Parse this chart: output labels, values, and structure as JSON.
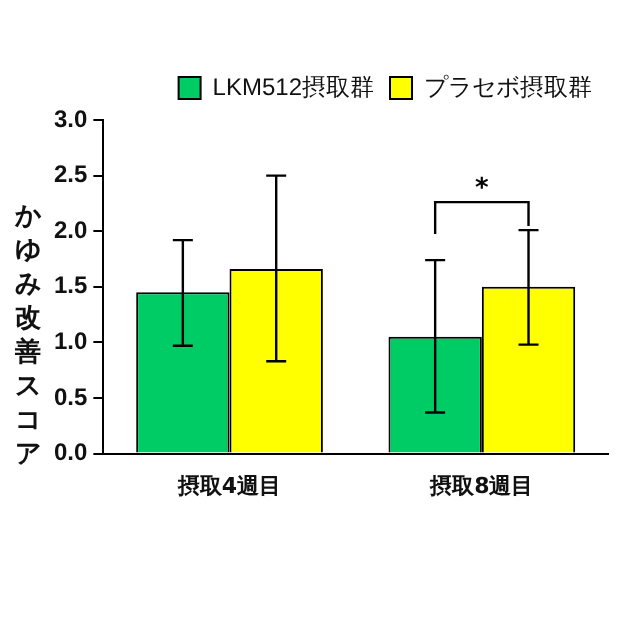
{
  "chart_data": {
    "type": "bar",
    "ylabel": "かゆみ改善スコア",
    "categories": [
      "摂取4週目",
      "摂取8週目"
    ],
    "series": [
      {
        "name": "LKM512摂取群",
        "color": "#00cc66",
        "values": [
          1.45,
          1.05
        ],
        "errors": [
          [
            0.97,
            1.92
          ],
          [
            0.37,
            1.74
          ]
        ]
      },
      {
        "name": "プラセボ摂取群",
        "color": "#ffff00",
        "values": [
          1.66,
          1.5
        ],
        "errors": [
          [
            0.83,
            2.5
          ],
          [
            0.98,
            2.01
          ]
        ]
      }
    ],
    "ylim": [
      0,
      3
    ],
    "yticks": [
      {
        "value": 0,
        "label": "0.0"
      },
      {
        "value": 0.5,
        "label": "0.5"
      },
      {
        "value": 1,
        "label": "1.0"
      },
      {
        "value": 1.5,
        "label": "1.5"
      },
      {
        "value": 2,
        "label": "2.0"
      },
      {
        "value": 2.5,
        "label": "2.5"
      },
      {
        "value": 3,
        "label": "3.0"
      }
    ],
    "annotations": [
      "*"
    ],
    "grid": false,
    "legend": "top right"
  }
}
